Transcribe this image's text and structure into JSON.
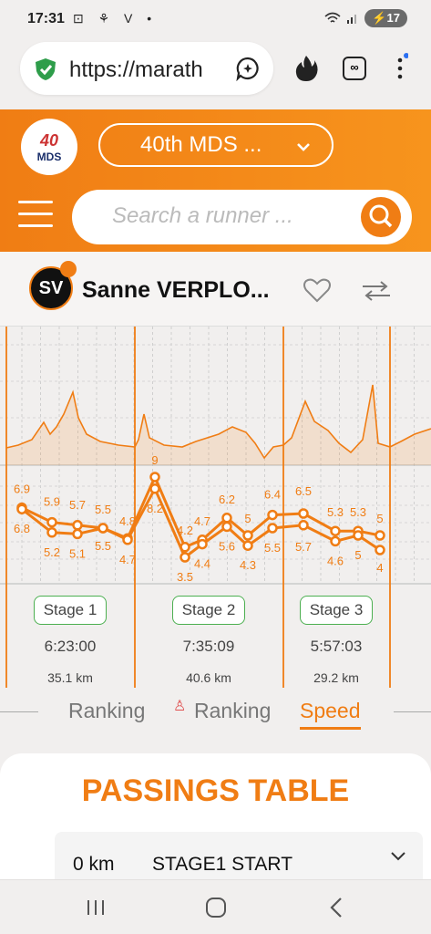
{
  "status": {
    "time": "17:31",
    "left_icons": "⊡ ⚘ V •",
    "battery": "17"
  },
  "browser": {
    "url": "https://marath"
  },
  "event": {
    "name": "40th MDS ...",
    "logo_number": "40",
    "logo_text": "MDS"
  },
  "search": {
    "placeholder": "Search a runner ..."
  },
  "runner": {
    "initials": "SV",
    "name": "Sanne VERPLO..."
  },
  "chart_data": {
    "type": "line",
    "series": [
      {
        "values": [
          6.9,
          5.9,
          5.7,
          5.5,
          4.8,
          9,
          4.2,
          4.7,
          6.2,
          5,
          6.4,
          6.5,
          5.3,
          5.3,
          5
        ]
      },
      {
        "values": [
          6.8,
          5.2,
          5.1,
          5.5,
          4.7,
          8.2,
          3.5,
          4.4,
          5.6,
          4.3,
          5.5,
          5.7,
          4.6,
          5,
          4
        ]
      }
    ],
    "stages": [
      {
        "label": "Stage 1",
        "time": "6:23:00",
        "distance": "35.1 km"
      },
      {
        "label": "Stage 2",
        "time": "7:35:09",
        "distance": "40.6 km"
      },
      {
        "label": "Stage 3",
        "time": "5:57:03",
        "distance": "29.2 km"
      }
    ]
  },
  "tabs": [
    {
      "label": "Ranking"
    },
    {
      "label": "Ranking"
    },
    {
      "label": "Speed",
      "active": true
    }
  ],
  "passings": {
    "title": "PASSINGS TABLE",
    "rows": [
      {
        "km": "0 km",
        "label": "STAGE1 START"
      }
    ]
  },
  "colors": {
    "accent": "#f07d14",
    "stage_border": "#4caf50"
  }
}
